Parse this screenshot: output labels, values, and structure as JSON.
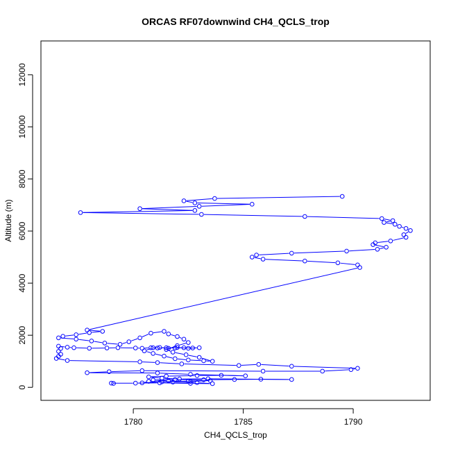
{
  "chart_data": {
    "type": "line",
    "title": "ORCAS RF07downwind CH4_QCLS_trop",
    "xlabel": "CH4_QCLS_trop",
    "ylabel": "Altitude (m)",
    "xlim": [
      1775.8,
      1793.5
    ],
    "ylim": [
      -500,
      13300
    ],
    "xticks": [
      1780,
      1785,
      1790
    ],
    "yticks": [
      0,
      2000,
      4000,
      6000,
      8000,
      10000,
      12000
    ],
    "grid": false,
    "legend": "none",
    "series": [
      {
        "color": "#0000ff",
        "marker": "open-circle",
        "points": [
          [
            1779.1,
            150
          ],
          [
            1779.0,
            160
          ],
          [
            1780.1,
            160
          ],
          [
            1781.2,
            170
          ],
          [
            1782.6,
            150
          ],
          [
            1783.6,
            140
          ],
          [
            1782.9,
            180
          ],
          [
            1781.8,
            200
          ],
          [
            1780.7,
            230
          ],
          [
            1780.4,
            170
          ],
          [
            1781.3,
            210
          ],
          [
            1782.5,
            240
          ],
          [
            1783.5,
            260
          ],
          [
            1782.6,
            220
          ],
          [
            1781.6,
            250
          ],
          [
            1780.9,
            280
          ],
          [
            1781.9,
            300
          ],
          [
            1783.2,
            290
          ],
          [
            1784.6,
            300
          ],
          [
            1785.8,
            310
          ],
          [
            1787.2,
            300
          ],
          [
            1783.4,
            330
          ],
          [
            1782.1,
            320
          ],
          [
            1781.3,
            350
          ],
          [
            1780.7,
            400
          ],
          [
            1781.5,
            430
          ],
          [
            1782.9,
            450
          ],
          [
            1784.0,
            460
          ],
          [
            1785.1,
            440
          ],
          [
            1782.6,
            500
          ],
          [
            1781.1,
            550
          ],
          [
            1777.9,
            560
          ],
          [
            1778.9,
            600
          ],
          [
            1780.4,
            640
          ],
          [
            1785.9,
            620
          ],
          [
            1788.6,
            620
          ],
          [
            1789.9,
            680
          ],
          [
            1790.2,
            730
          ],
          [
            1787.2,
            810
          ],
          [
            1785.7,
            880
          ],
          [
            1784.8,
            840
          ],
          [
            1782.2,
            900
          ],
          [
            1781.1,
            950
          ],
          [
            1780.3,
            980
          ],
          [
            1777.0,
            1030
          ],
          [
            1776.5,
            1110
          ],
          [
            1776.6,
            1190
          ],
          [
            1776.7,
            1270
          ],
          [
            1776.6,
            1380
          ],
          [
            1776.7,
            1490
          ],
          [
            1776.6,
            1580
          ],
          [
            1777.0,
            1540
          ],
          [
            1777.3,
            1520
          ],
          [
            1778.0,
            1500
          ],
          [
            1778.8,
            1510
          ],
          [
            1779.3,
            1520
          ],
          [
            1780.1,
            1510
          ],
          [
            1780.4,
            1500
          ],
          [
            1780.8,
            1520
          ],
          [
            1781.1,
            1510
          ],
          [
            1781.5,
            1520
          ],
          [
            1781.9,
            1510
          ],
          [
            1782.3,
            1520
          ],
          [
            1782.7,
            1510
          ],
          [
            1783.0,
            1520
          ],
          [
            1782.5,
            1500
          ],
          [
            1782.0,
            1530
          ],
          [
            1781.6,
            1500
          ],
          [
            1781.2,
            1530
          ],
          [
            1780.9,
            1520
          ],
          [
            1780.5,
            1400
          ],
          [
            1780.9,
            1300
          ],
          [
            1781.4,
            1200
          ],
          [
            1781.9,
            1100
          ],
          [
            1782.5,
            1050
          ],
          [
            1783.2,
            1020
          ],
          [
            1783.6,
            1000
          ],
          [
            1783.0,
            1150
          ],
          [
            1782.4,
            1250
          ],
          [
            1781.8,
            1350
          ],
          [
            1781.5,
            1450
          ],
          [
            1782.0,
            1600
          ],
          [
            1782.5,
            1720
          ],
          [
            1782.3,
            1850
          ],
          [
            1782.0,
            1950
          ],
          [
            1781.6,
            2050
          ],
          [
            1781.4,
            2150
          ],
          [
            1780.8,
            2080
          ],
          [
            1780.3,
            1900
          ],
          [
            1779.8,
            1750
          ],
          [
            1779.4,
            1650
          ],
          [
            1778.7,
            1700
          ],
          [
            1778.1,
            1780
          ],
          [
            1777.4,
            1850
          ],
          [
            1776.6,
            1900
          ],
          [
            1776.8,
            1960
          ],
          [
            1777.4,
            2020
          ],
          [
            1778.0,
            2100
          ],
          [
            1778.6,
            2150
          ],
          [
            1777.9,
            2200
          ],
          [
            1790.3,
            4600
          ],
          [
            1790.2,
            4700
          ],
          [
            1789.3,
            4780
          ],
          [
            1787.8,
            4850
          ],
          [
            1785.9,
            4920
          ],
          [
            1785.4,
            5000
          ],
          [
            1785.6,
            5080
          ],
          [
            1787.2,
            5150
          ],
          [
            1789.7,
            5230
          ],
          [
            1791.1,
            5300
          ],
          [
            1791.5,
            5380
          ],
          [
            1790.9,
            5480
          ],
          [
            1791.0,
            5550
          ],
          [
            1791.7,
            5620
          ],
          [
            1792.4,
            5760
          ],
          [
            1792.3,
            5860
          ],
          [
            1792.6,
            6020
          ],
          [
            1792.4,
            6100
          ],
          [
            1792.1,
            6180
          ],
          [
            1791.9,
            6260
          ],
          [
            1791.4,
            6330
          ],
          [
            1791.8,
            6400
          ],
          [
            1791.3,
            6480
          ],
          [
            1787.8,
            6560
          ],
          [
            1783.1,
            6640
          ],
          [
            1777.6,
            6710
          ],
          [
            1782.8,
            6790
          ],
          [
            1780.3,
            6860
          ],
          [
            1783.0,
            6950
          ],
          [
            1785.4,
            7030
          ],
          [
            1782.8,
            7080
          ],
          [
            1782.3,
            7160
          ],
          [
            1783.7,
            7250
          ],
          [
            1789.5,
            7330
          ]
        ]
      }
    ]
  }
}
